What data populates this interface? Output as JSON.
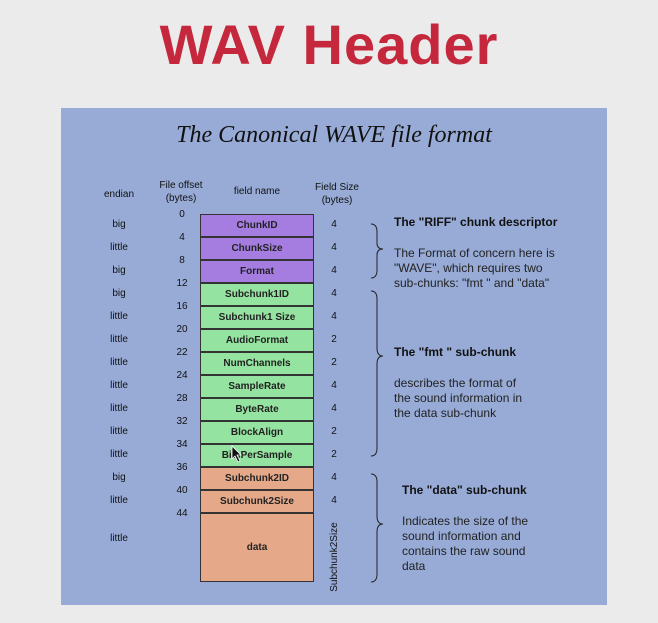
{
  "slide_title": "WAV Header",
  "diagram_title": "The Canonical WAVE file format",
  "columns": {
    "endian": "endian",
    "file_offset": "File offset\n(bytes)",
    "field_name": "field name",
    "field_size": "Field Size\n(bytes)"
  },
  "offsets": [
    "0",
    "4",
    "8",
    "12",
    "16",
    "20",
    "22",
    "24",
    "28",
    "32",
    "34",
    "36",
    "40",
    "44"
  ],
  "fields": [
    {
      "name": "ChunkID",
      "endian": "big",
      "size": "4",
      "group": "riff"
    },
    {
      "name": "ChunkSize",
      "endian": "little",
      "size": "4",
      "group": "riff"
    },
    {
      "name": "Format",
      "endian": "big",
      "size": "4",
      "group": "riff"
    },
    {
      "name": "Subchunk1ID",
      "endian": "big",
      "size": "4",
      "group": "fmt"
    },
    {
      "name": "Subchunk1 Size",
      "endian": "little",
      "size": "4",
      "group": "fmt"
    },
    {
      "name": "AudioFormat",
      "endian": "little",
      "size": "2",
      "group": "fmt"
    },
    {
      "name": "NumChannels",
      "endian": "little",
      "size": "2",
      "group": "fmt"
    },
    {
      "name": "SampleRate",
      "endian": "little",
      "size": "4",
      "group": "fmt"
    },
    {
      "name": "ByteRate",
      "endian": "little",
      "size": "4",
      "group": "fmt"
    },
    {
      "name": "BlockAlign",
      "endian": "little",
      "size": "2",
      "group": "fmt"
    },
    {
      "name": "BitsPerSample",
      "endian": "little",
      "size": "2",
      "group": "fmt"
    },
    {
      "name": "Subchunk2ID",
      "endian": "big",
      "size": "4",
      "group": "data"
    },
    {
      "name": "Subchunk2Size",
      "endian": "little",
      "size": "4",
      "group": "data"
    },
    {
      "name": "data",
      "endian": "little",
      "size": "Subchunk2Size",
      "group": "data"
    }
  ],
  "sections": {
    "riff": {
      "heading": "The \"RIFF\" chunk descriptor",
      "description": "The Format of concern here is\n\"WAVE\", which requires two\nsub-chunks: \"fmt \" and \"data\""
    },
    "fmt": {
      "heading": "The \"fmt \" sub-chunk",
      "description": "describes the format of\nthe sound information in\nthe data sub-chunk"
    },
    "data": {
      "heading": "The \"data\" sub-chunk",
      "description": "Indicates the size of the\nsound information and\ncontains the raw sound\ndata"
    }
  },
  "colors": {
    "title": "#c5283d",
    "panel": "#97abd6",
    "riff": "#a57de0",
    "fmt": "#94e3a0",
    "data": "#e5a98a"
  }
}
